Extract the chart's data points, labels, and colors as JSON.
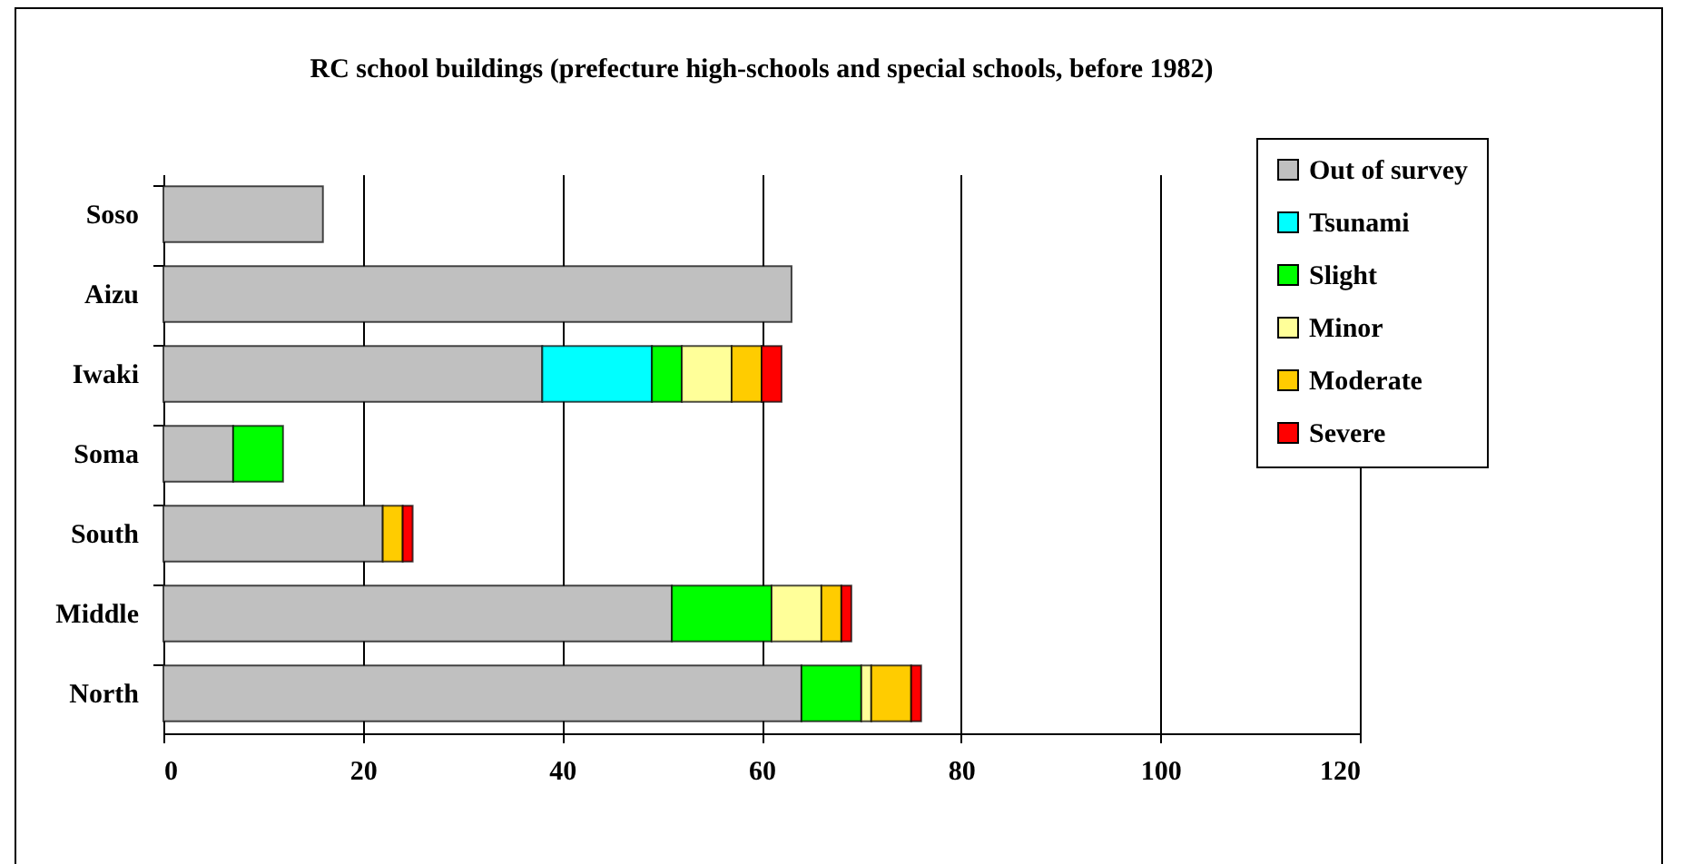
{
  "chart_data": {
    "type": "bar",
    "orientation": "horizontal",
    "stacked": true,
    "title": "RC school buildings (prefecture high-schools and special schools, before 1982)",
    "categories": [
      "Soso",
      "Aizu",
      "Iwaki",
      "Soma",
      "South",
      "Middle",
      "North"
    ],
    "series": [
      {
        "name": "Out of survey",
        "color": "#c0c0c0",
        "values": [
          16,
          63,
          38,
          7,
          22,
          51,
          64
        ]
      },
      {
        "name": "Tsunami",
        "color": "#00ffff",
        "values": [
          0,
          0,
          11,
          0,
          0,
          0,
          0
        ]
      },
      {
        "name": "Slight",
        "color": "#00ff00",
        "values": [
          0,
          0,
          3,
          5,
          0,
          10,
          6
        ]
      },
      {
        "name": "Minor",
        "color": "#ffff99",
        "values": [
          0,
          0,
          5,
          0,
          0,
          5,
          1
        ]
      },
      {
        "name": "Moderate",
        "color": "#ffcc00",
        "values": [
          0,
          0,
          3,
          0,
          2,
          2,
          4
        ]
      },
      {
        "name": "Severe",
        "color": "#ff0000",
        "values": [
          0,
          0,
          2,
          0,
          1,
          1,
          1
        ]
      }
    ],
    "xlim": [
      0,
      120
    ],
    "xticks": [
      0,
      20,
      40,
      60,
      80,
      100,
      120
    ],
    "grid": "x",
    "legend": "top right"
  }
}
